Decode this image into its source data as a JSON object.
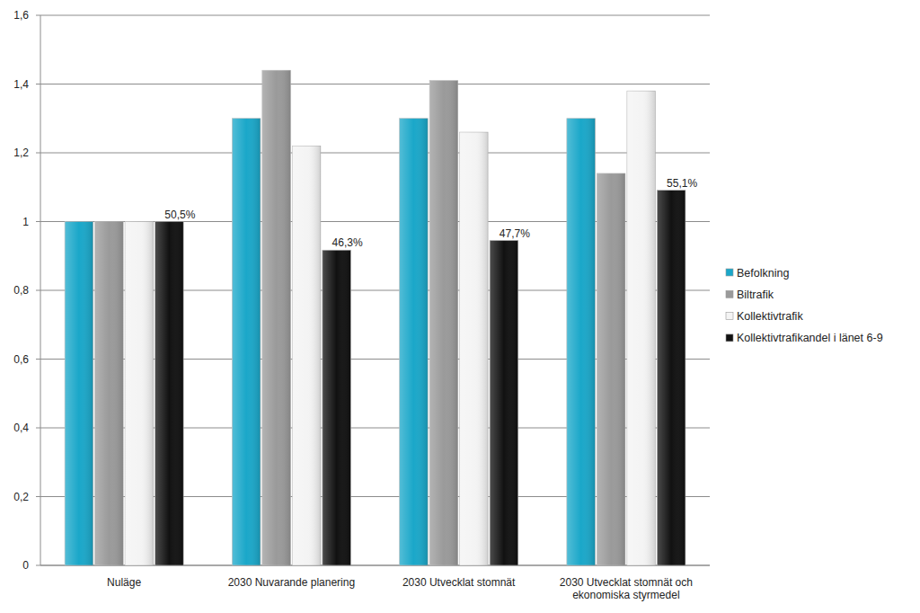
{
  "chart_data": {
    "type": "bar",
    "categories": [
      "Nuläge",
      "2030 Nuvarande planering",
      "2030 Utvecklat stomnät",
      "2030 Utvecklat stomnät och ekonomiska styrmedel"
    ],
    "series": [
      {
        "name": "Befolkning",
        "color": "#1aa7c9",
        "values": [
          1,
          1.3,
          1.3,
          1.3
        ]
      },
      {
        "name": "Biltrafik",
        "color": "#9a9a9a",
        "values": [
          1,
          1.44,
          1.41,
          1.14
        ]
      },
      {
        "name": "Kollektivtrafik",
        "color": "#f4f4f4",
        "values": [
          1,
          1.22,
          1.26,
          1.38
        ]
      },
      {
        "name": "Kollektivtrafikandel i länet 6-9",
        "color": "#111111",
        "values": [
          1,
          0.917,
          0.945,
          1.091
        ]
      }
    ],
    "annotations": [
      "50,5%",
      "46,3%",
      "47,7%",
      "55,1%"
    ],
    "ylim": [
      0,
      1.6
    ],
    "yticks": [
      0,
      {
        "value": 0.2,
        "label": "0,2"
      },
      {
        "value": 0.4,
        "label": "0,4"
      },
      {
        "value": 0.6,
        "label": "0,6"
      },
      {
        "value": 0.8,
        "label": "0,8"
      },
      1,
      {
        "value": 1.2,
        "label": "1,2"
      },
      {
        "value": 1.4,
        "label": "1,4"
      },
      {
        "value": 1.6,
        "label": "1,6"
      }
    ],
    "grid": true,
    "legend": "right"
  }
}
